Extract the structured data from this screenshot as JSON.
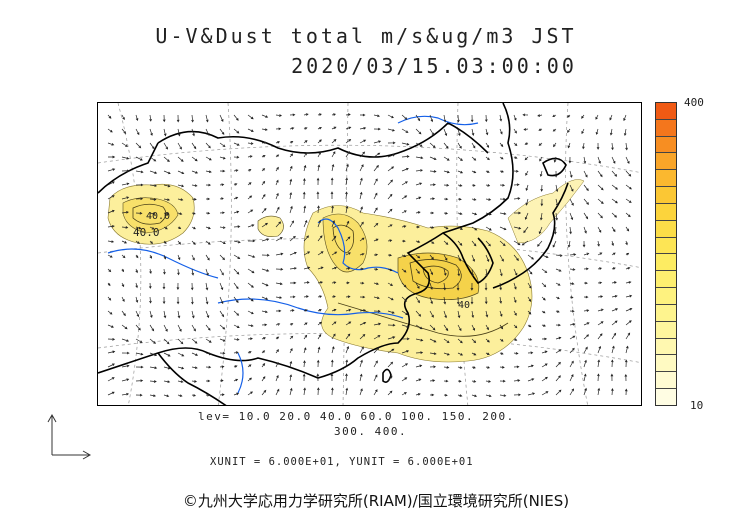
{
  "title_line1": "U-V&Dust total m/s&ug/m3 JST",
  "title_line2": "2020/03/15.03:00:00",
  "colorbar": {
    "max_label": "400",
    "min_label": "10",
    "colors": [
      "#f05a14",
      "#f4761c",
      "#f78e22",
      "#f9a529",
      "#fbb82f",
      "#fbc734",
      "#fcd43c",
      "#fcdd48",
      "#fde555",
      "#fdec62",
      "#feef70",
      "#fef27f",
      "#fef48e",
      "#fef69e",
      "#fff8b0",
      "#fffac2",
      "#fffbd2",
      "#fffde3"
    ]
  },
  "map": {
    "contour_labels": [
      "40.0",
      "40.0",
      "40"
    ],
    "dust_fill_color": "#fcef9c",
    "dust_core_color": "#f8e06a",
    "river_color": "#1560e8",
    "coast_color": "#000000"
  },
  "levels_line1": "lev= 10.0 20.0 40.0 60.0 100. 150. 200.",
  "levels_line2": "300. 400.",
  "units_line": "XUNIT = 6.000E+01, YUNIT = 6.000E+01",
  "copyright": "©九州大学応用力学研究所(RIAM)/国立環境研究所(NIES)"
}
